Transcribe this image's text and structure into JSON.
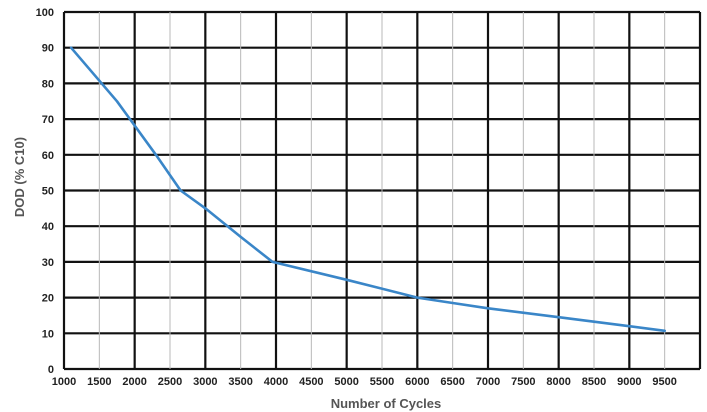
{
  "chart_data": {
    "type": "line",
    "title": "",
    "xlabel": "Number of Cycles",
    "ylabel": "DOD (% C10)",
    "xlim": [
      1000,
      10000
    ],
    "ylim": [
      0,
      100
    ],
    "x_ticks": [
      "1000",
      "1500",
      "2000",
      "2500",
      "3000",
      "3500",
      "4000",
      "4500",
      "5000",
      "5500",
      "6000",
      "6500",
      "7000",
      "7500",
      "8000",
      "8500",
      "9000",
      "9500"
    ],
    "y_ticks": [
      "0",
      "10",
      "20",
      "30",
      "40",
      "50",
      "60",
      "70",
      "80",
      "90",
      "100"
    ],
    "grid": true,
    "series": [
      {
        "color": "#3a86c8",
        "x": [
          1100,
          1750,
          2300,
          2650,
          3000,
          3500,
          3950,
          5000,
          6000,
          6500,
          7000,
          8000,
          9000,
          9500
        ],
        "y": [
          90,
          75,
          60,
          50,
          45,
          37,
          30,
          25,
          20,
          18.5,
          17,
          14.5,
          12,
          10.7
        ]
      }
    ]
  }
}
